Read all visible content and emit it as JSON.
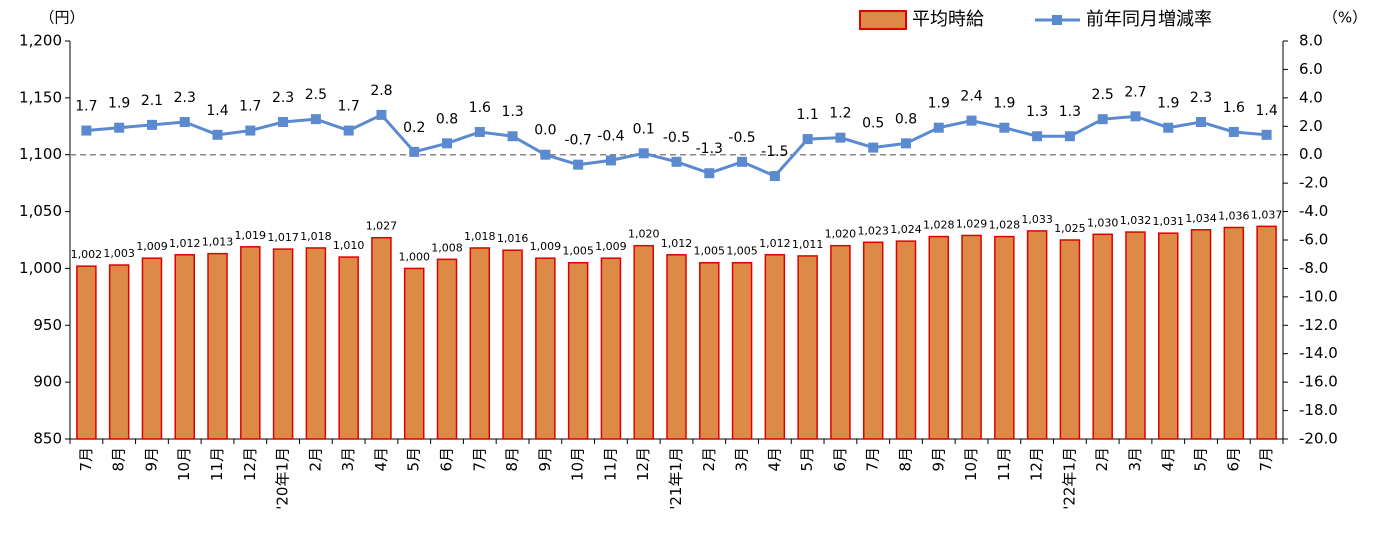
{
  "chart_data": {
    "type": "combo",
    "y_unit_label": "（円）",
    "y2_unit_label": "（%）",
    "categories": [
      "7月",
      "8月",
      "9月",
      "10月",
      "11月",
      "12月",
      "'20年1月",
      "2月",
      "3月",
      "4月",
      "5月",
      "6月",
      "7月",
      "8月",
      "9月",
      "10月",
      "11月",
      "12月",
      "'21年1月",
      "2月",
      "3月",
      "4月",
      "5月",
      "6月",
      "7月",
      "8月",
      "9月",
      "10月",
      "11月",
      "12月",
      "'22年1月",
      "2月",
      "3月",
      "4月",
      "5月",
      "6月",
      "7月"
    ],
    "series": [
      {
        "name": "平均時給",
        "type": "bar",
        "color": "#dd8a46",
        "edge_color": "#e00000",
        "values": [
          1002,
          1003,
          1009,
          1012,
          1013,
          1019,
          1017,
          1018,
          1010,
          1027,
          1000,
          1008,
          1018,
          1016,
          1009,
          1005,
          1009,
          1020,
          1012,
          1005,
          1005,
          1012,
          1011,
          1020,
          1023,
          1024,
          1028,
          1029,
          1028,
          1033,
          1025,
          1030,
          1032,
          1031,
          1034,
          1036,
          1037
        ],
        "value_labels": [
          "1,002",
          "1,003",
          "1,009",
          "1,012",
          "1,013",
          "1,019",
          "1,017",
          "1,018",
          "1,010",
          "1,027",
          "1,000",
          "1,008",
          "1,018",
          "1,016",
          "1,009",
          "1,005",
          "1,009",
          "1,020",
          "1,012",
          "1,005",
          "1,005",
          "1,012",
          "1,011",
          "1,020",
          "1,023",
          "1,024",
          "1,028",
          "1,029",
          "1,028",
          "1,033",
          "1,025",
          "1,030",
          "1,032",
          "1,031",
          "1,034",
          "1,036",
          "1,037"
        ]
      },
      {
        "name": "前年同月増減率",
        "type": "line",
        "axis": "y2",
        "color": "#5b8ad0",
        "values": [
          1.7,
          1.9,
          2.1,
          2.3,
          1.4,
          1.7,
          2.3,
          2.5,
          1.7,
          2.8,
          0.2,
          0.8,
          1.6,
          1.3,
          0.0,
          -0.7,
          -0.4,
          0.1,
          -0.5,
          -1.3,
          -0.5,
          -1.5,
          1.1,
          1.2,
          0.5,
          0.8,
          1.9,
          2.4,
          1.9,
          1.3,
          1.3,
          2.5,
          2.7,
          1.9,
          2.3,
          1.6,
          1.4
        ],
        "value_labels": [
          "1.7",
          "1.9",
          "2.1",
          "2.3",
          "1.4",
          "1.7",
          "2.3",
          "2.5",
          "1.7",
          "2.8",
          "0.2",
          "0.8",
          "1.6",
          "1.3",
          "0.0",
          "-0.7",
          "-0.4",
          "0.1",
          "-0.5",
          "-1.3",
          "-0.5",
          "-1.5",
          "1.1",
          "1.2",
          "0.5",
          "0.8",
          "1.9",
          "2.4",
          "1.9",
          "1.3",
          "1.3",
          "2.5",
          "2.7",
          "1.9",
          "2.3",
          "1.6",
          "1.4"
        ]
      }
    ],
    "ylim": [
      850,
      1200
    ],
    "yticks": [
      {
        "value": 1200,
        "label": "1,200"
      },
      {
        "value": 1150,
        "label": "1,150"
      },
      {
        "value": 1100,
        "label": "1,100"
      },
      {
        "value": 1050,
        "label": "1,050"
      },
      {
        "value": 1000,
        "label": "1,000"
      },
      950,
      900,
      850
    ],
    "y2lim": [
      -20,
      8
    ],
    "y2ticks": [
      {
        "value": 8,
        "label": "8.0"
      },
      {
        "value": 6,
        "label": "6.0"
      },
      {
        "value": 4,
        "label": "4.0"
      },
      {
        "value": 2,
        "label": "2.0"
      },
      {
        "value": 0,
        "label": "0.0"
      },
      {
        "value": -2,
        "label": "-2.0"
      },
      {
        "value": -4,
        "label": "-4.0"
      },
      {
        "value": -6,
        "label": "-6.0"
      },
      {
        "value": -8,
        "label": "-8.0"
      },
      {
        "value": -10,
        "label": "-10.0"
      },
      {
        "value": -12,
        "label": "-12.0"
      },
      {
        "value": -14,
        "label": "-14.0"
      },
      {
        "value": -16,
        "label": "-16.0"
      },
      {
        "value": -18,
        "label": "-18.0"
      },
      {
        "value": -20,
        "label": "-20.0"
      }
    ]
  }
}
